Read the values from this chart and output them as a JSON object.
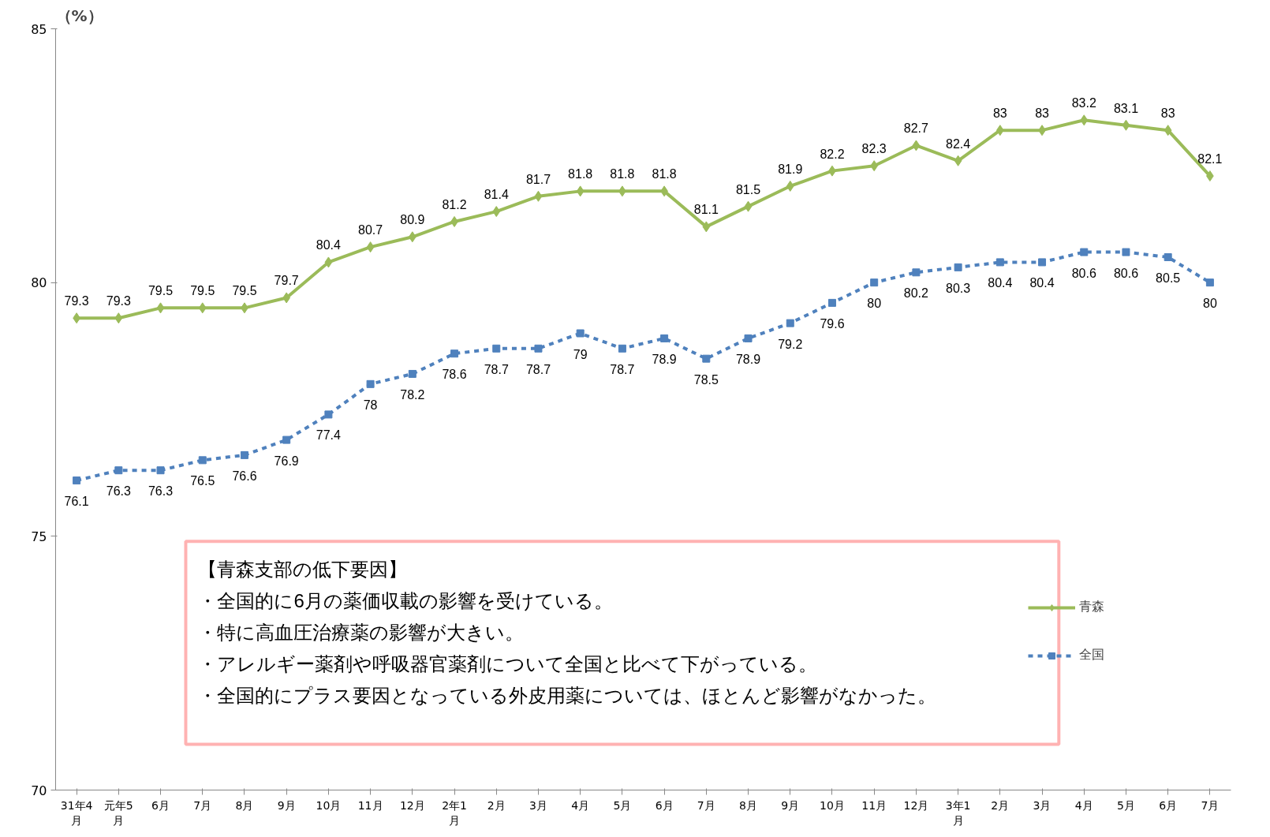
{
  "chart_data": {
    "type": "line",
    "ylabel": "（%）",
    "categories": [
      "31年4月",
      "元年5月",
      "6月",
      "7月",
      "8月",
      "9月",
      "10月",
      "11月",
      "12月",
      "2年1月",
      "2月",
      "3月",
      "4月",
      "5月",
      "6月",
      "7月",
      "8月",
      "9月",
      "10月",
      "11月",
      "12月",
      "3年1月",
      "2月",
      "3月",
      "4月",
      "5月",
      "6月",
      "7月"
    ],
    "series": [
      {
        "name": "青森",
        "color": "#9bbb59",
        "marker": "diamond",
        "line_style": "solid",
        "values": [
          79.3,
          79.3,
          79.5,
          79.5,
          79.5,
          79.7,
          80.4,
          80.7,
          80.9,
          81.2,
          81.4,
          81.7,
          81.8,
          81.8,
          81.8,
          81.1,
          81.5,
          81.9,
          82.2,
          82.3,
          82.7,
          82.4,
          83,
          83,
          83.2,
          83.1,
          83,
          82.1
        ]
      },
      {
        "name": "全国",
        "color": "#4f81bd",
        "marker": "square",
        "line_style": "dashed",
        "values": [
          76.1,
          76.3,
          76.3,
          76.5,
          76.6,
          76.9,
          77.4,
          78,
          78.2,
          78.6,
          78.7,
          78.7,
          79,
          78.7,
          78.9,
          78.5,
          78.9,
          79.2,
          79.6,
          80,
          80.2,
          80.3,
          80.4,
          80.4,
          80.6,
          80.6,
          80.5,
          80
        ]
      }
    ],
    "ylim": [
      70,
      85
    ],
    "yticks": [
      70,
      75,
      80,
      85
    ],
    "grid": false,
    "legend": "bottom right",
    "data_labels": true,
    "annotations": [
      "【青森支部の低下要因】",
      "・全国的に6月の薬価収載の影響を受けている。",
      "・特に高血圧治療薬の影響が大きい。",
      "・アレルギー薬剤や呼吸器官薬剤について全国と比べて下がっている。",
      "・全国的にプラス要因となっている外皮用薬については、ほとんど影響がなかった。"
    ]
  }
}
